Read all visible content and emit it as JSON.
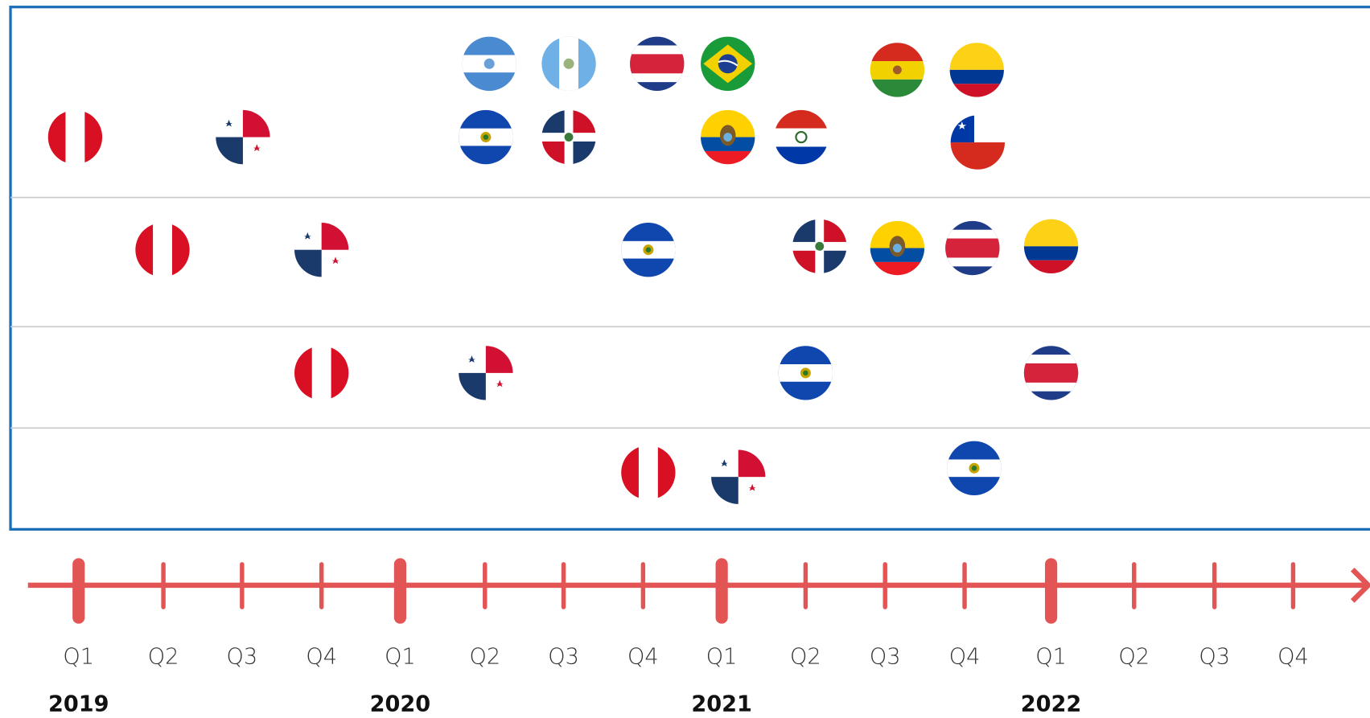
{
  "timeline": {
    "quarters": [
      "Q1",
      "Q2",
      "Q3",
      "Q4",
      "Q1",
      "Q2",
      "Q3",
      "Q4",
      "Q1",
      "Q2",
      "Q3",
      "Q4",
      "Q1",
      "Q2",
      "Q3",
      "Q4"
    ],
    "years": [
      "2019",
      "2020",
      "2021",
      "2022"
    ]
  }
}
